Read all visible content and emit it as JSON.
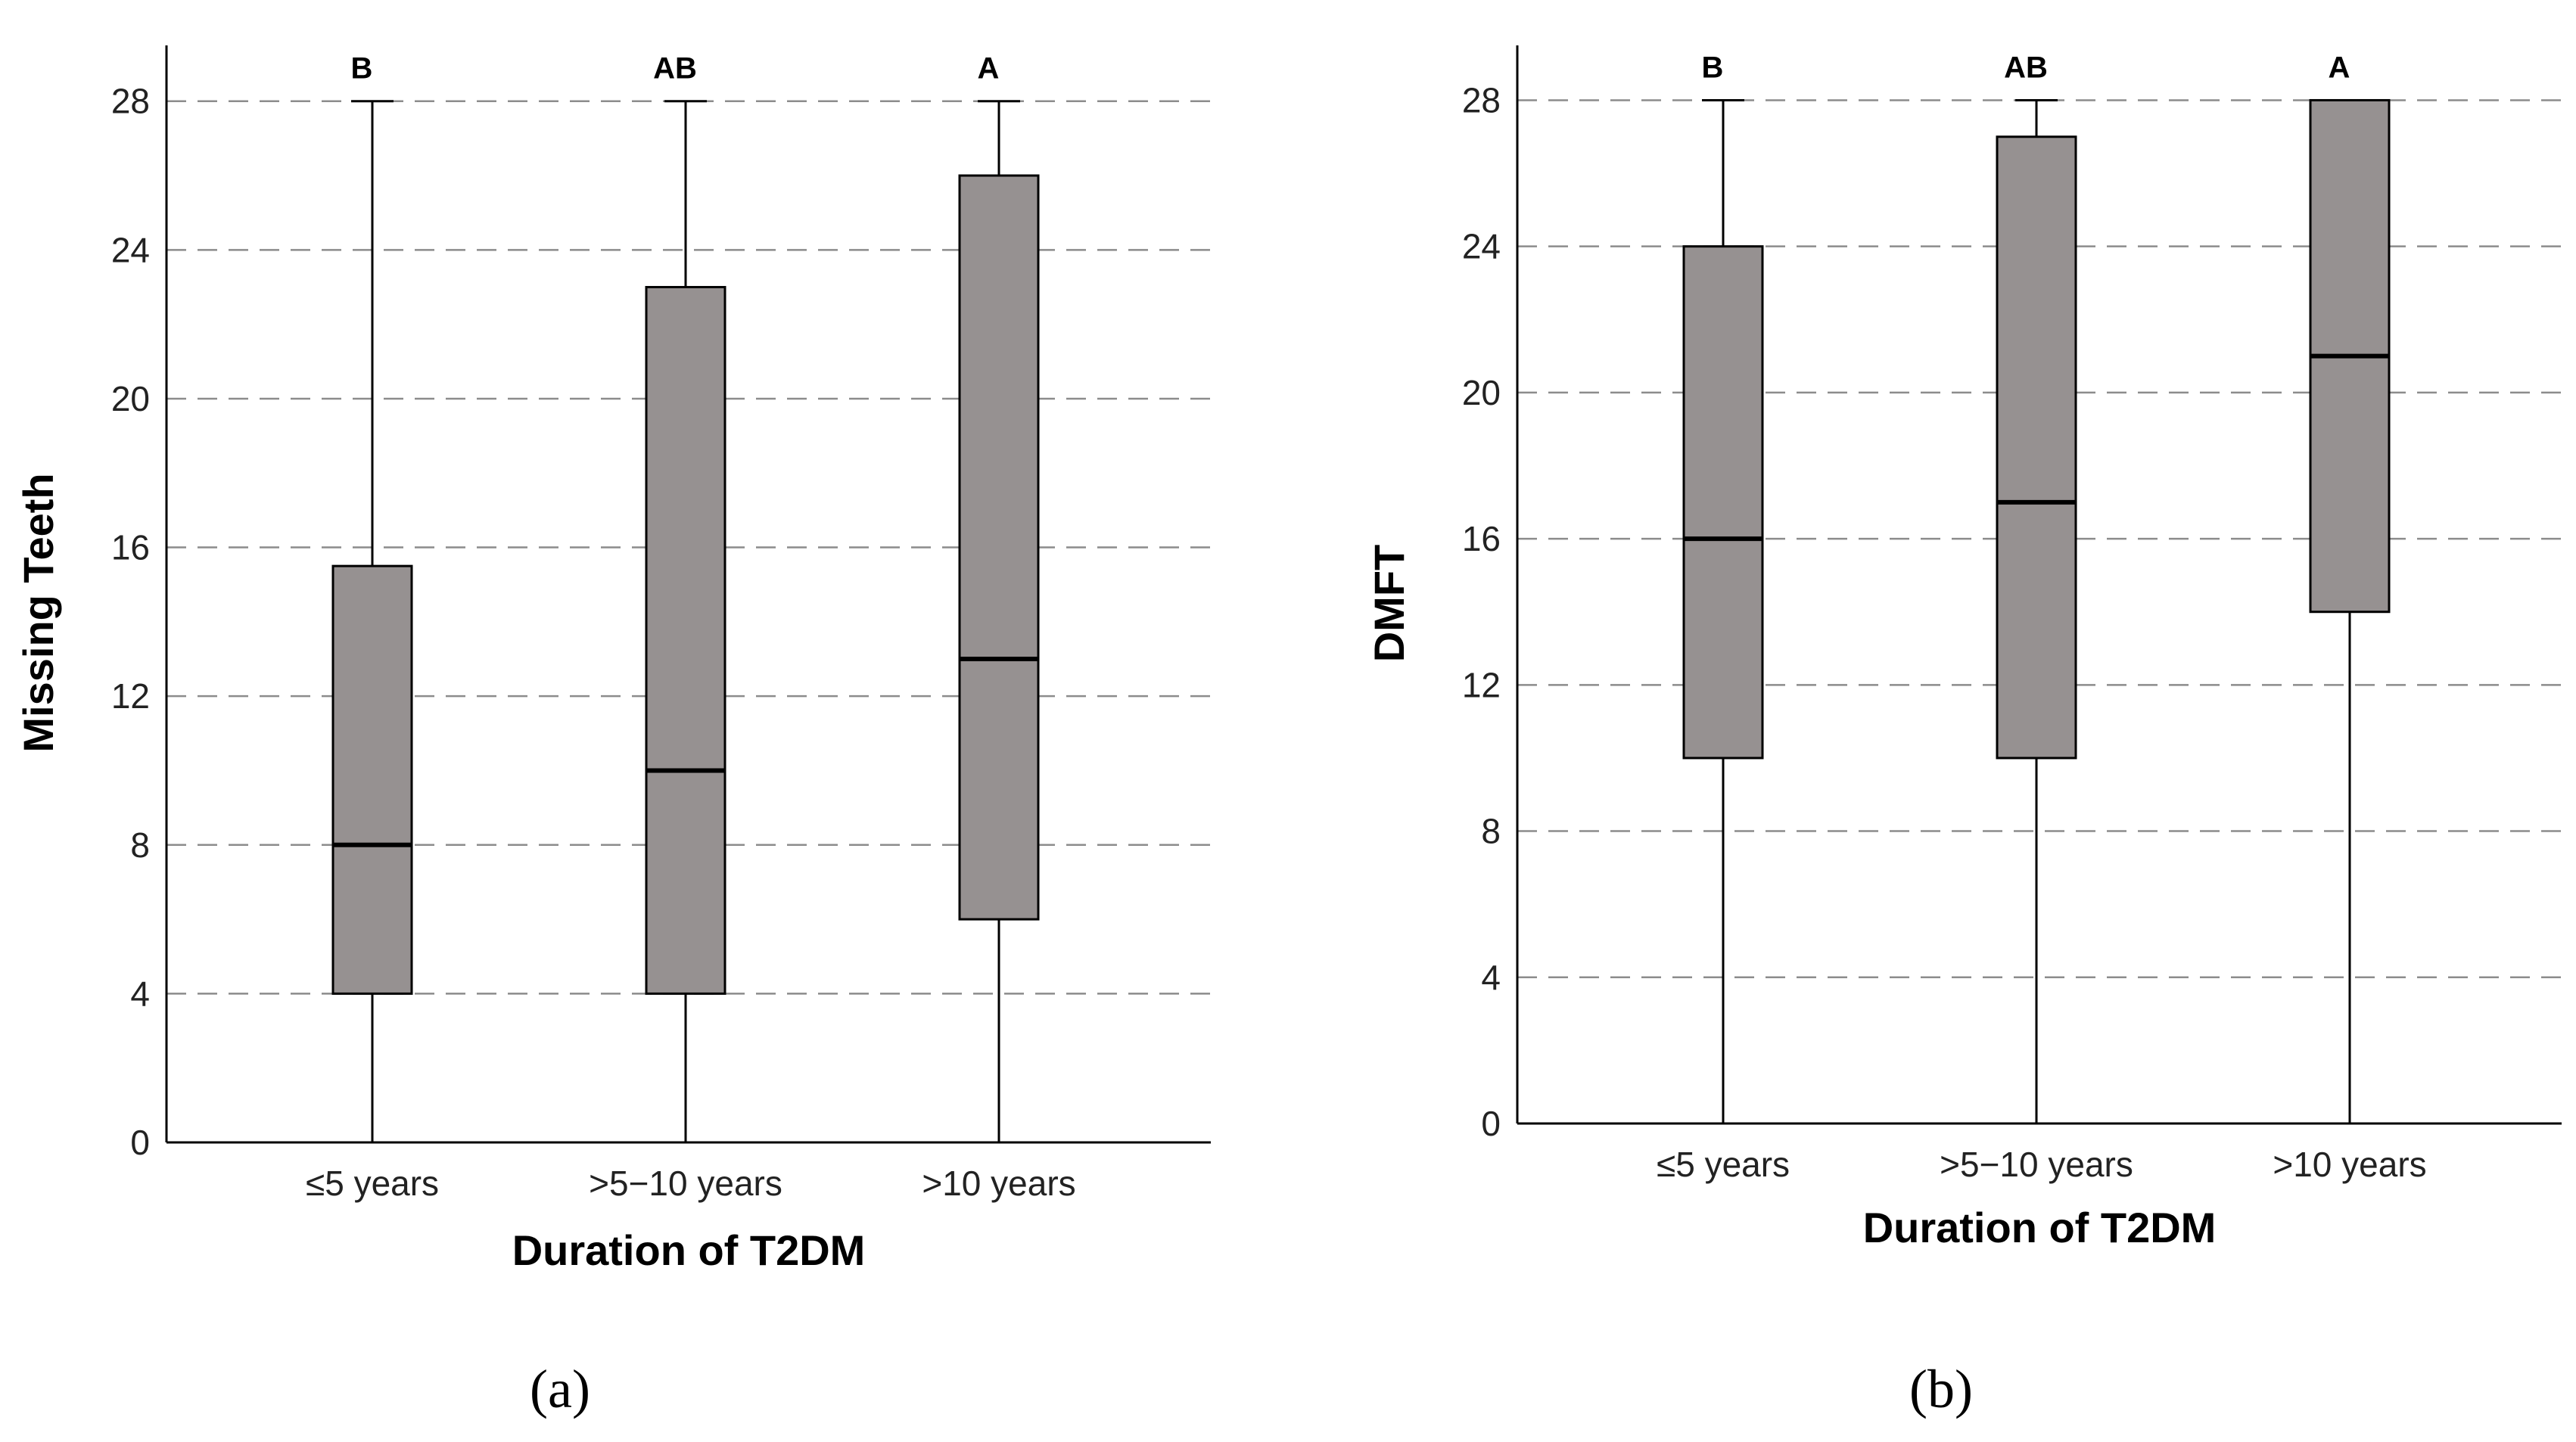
{
  "style": {
    "box_fill": "#969191",
    "grid_color": "#8c8c8c"
  },
  "chart_data": [
    {
      "type": "boxplot",
      "panel_label": "(a)",
      "title": "",
      "xlabel": "Duration of T2DM",
      "ylabel": "Missing Teeth",
      "ylim": [
        0,
        29.5
      ],
      "yticks": [
        0,
        4,
        8,
        12,
        16,
        20,
        24,
        28
      ],
      "grid": "horizontal dashed",
      "categories": [
        "≤5 years",
        ">5−10 years",
        ">10 years"
      ],
      "boxes": [
        {
          "min": 0,
          "q1": 4,
          "median": 8,
          "q3": 15.5,
          "max": 28,
          "sig": "B"
        },
        {
          "min": 0,
          "q1": 4,
          "median": 10,
          "q3": 23,
          "max": 28,
          "sig": "AB"
        },
        {
          "min": 0,
          "q1": 6,
          "median": 13,
          "q3": 26,
          "max": 28,
          "sig": "A"
        }
      ]
    },
    {
      "type": "boxplot",
      "panel_label": "(b)",
      "title": "",
      "xlabel": "Duration of T2DM",
      "ylabel": "DMFT",
      "ylim": [
        0,
        29.5
      ],
      "yticks": [
        0,
        4,
        8,
        12,
        16,
        20,
        24,
        28
      ],
      "grid": "horizontal dashed",
      "categories": [
        "≤5 years",
        ">5−10 years",
        ">10 years"
      ],
      "boxes": [
        {
          "min": 0,
          "q1": 10,
          "median": 16,
          "q3": 24,
          "max": 28,
          "sig": "B"
        },
        {
          "min": 0,
          "q1": 10,
          "median": 17,
          "q3": 27,
          "max": 28,
          "sig": "AB"
        },
        {
          "min": 0,
          "q1": 14,
          "median": 21,
          "q3": 28,
          "max": 28,
          "sig": "A"
        }
      ]
    }
  ]
}
